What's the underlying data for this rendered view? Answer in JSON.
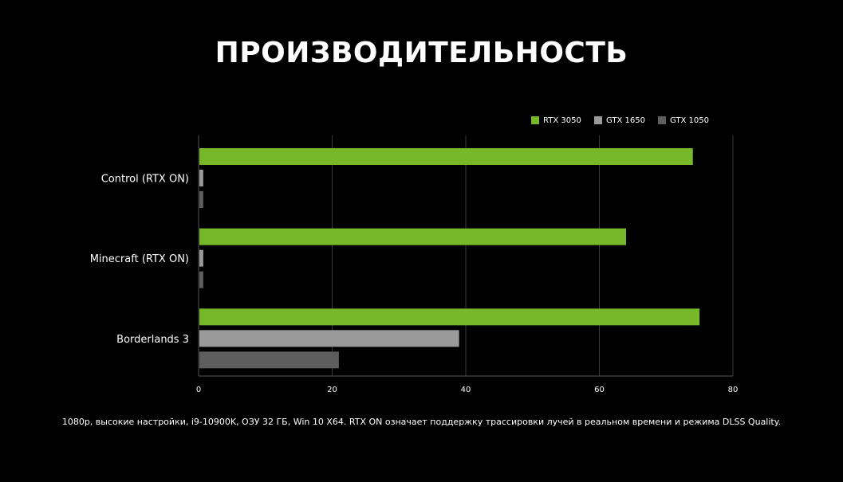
{
  "title": "ПРОИЗВОДИТЕЛЬНОСТЬ",
  "footnote": "1080р, высокие настройки, i9-10900K, ОЗУ 32 ГБ, Win 10 X64. RTX ON означает поддержку трассировки лучей в реальном времени и режима DLSS Quality.",
  "chart_data": {
    "type": "bar",
    "orientation": "horizontal",
    "categories": [
      "Control (RTX ON)",
      "Minecraft (RTX ON)",
      "Borderlands 3"
    ],
    "series": [
      {
        "name": "RTX 3050",
        "color": "#76b82a",
        "values": [
          74,
          64,
          75
        ]
      },
      {
        "name": "GTX 1650",
        "color": "#9a9a9a",
        "values": [
          0.7,
          0.7,
          39
        ]
      },
      {
        "name": "GTX 1050",
        "color": "#5e5e5e",
        "values": [
          0.7,
          0.7,
          21
        ]
      }
    ],
    "xlim": [
      0,
      80
    ],
    "xticks": [
      0,
      20,
      40,
      60,
      80
    ],
    "grid": true,
    "legend_position": "top-right"
  }
}
